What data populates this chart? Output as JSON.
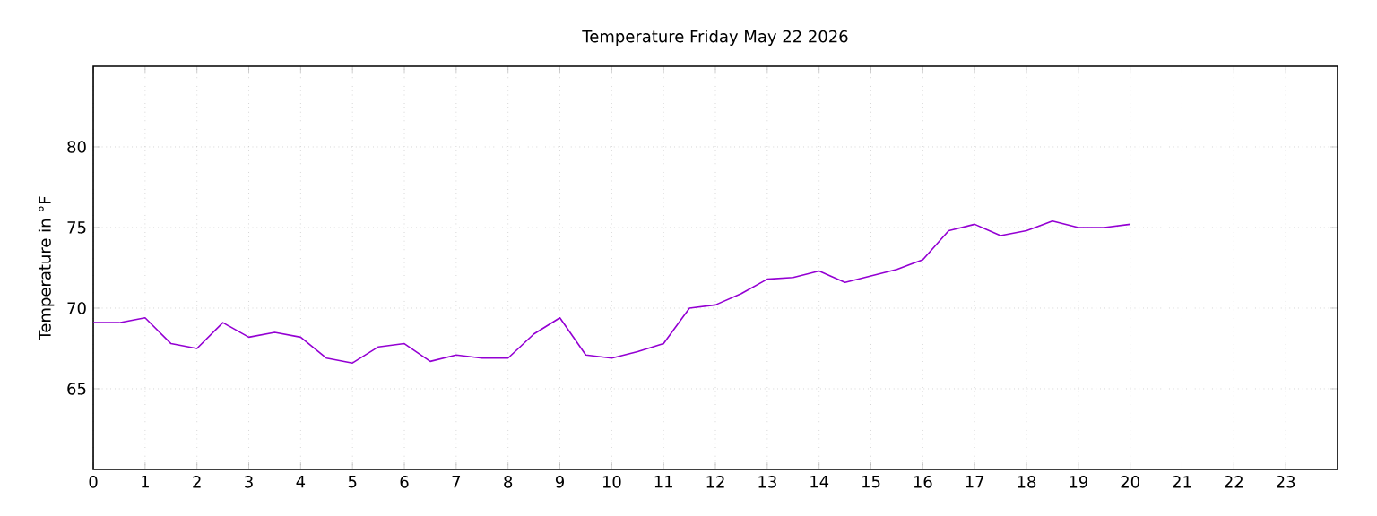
{
  "chart_data": {
    "type": "line",
    "title": "Temperature Friday May 22 2026",
    "ylabel": "Temperature in °F",
    "x": [
      0,
      0.5,
      1,
      1.5,
      2,
      2.5,
      3,
      3.5,
      4,
      4.5,
      5,
      5.5,
      6,
      6.5,
      7,
      7.5,
      8,
      8.5,
      9,
      9.5,
      10,
      10.5,
      11,
      11.5,
      12,
      12.5,
      13,
      13.5,
      14,
      14.5,
      15,
      15.5,
      16,
      16.5,
      17,
      17.5,
      18,
      18.5,
      19,
      19.5,
      20
    ],
    "series": [
      {
        "color": "#9400d3",
        "values": [
          69.1,
          69.1,
          69.4,
          67.8,
          67.5,
          69.1,
          68.2,
          68.5,
          68.2,
          66.9,
          66.6,
          67.6,
          67.8,
          66.7,
          67.1,
          66.9,
          66.9,
          68.4,
          69.4,
          67.1,
          66.9,
          67.3,
          67.8,
          70.0,
          70.2,
          70.9,
          71.8,
          71.9,
          72.3,
          71.6,
          72.0,
          72.4,
          73.0,
          74.8,
          75.2,
          74.5,
          74.8,
          75.4,
          75.0,
          75.0,
          75.2
        ]
      }
    ],
    "xlim": [
      0,
      24
    ],
    "ylim": [
      60,
      85
    ],
    "xticks": [
      0,
      1,
      2,
      3,
      4,
      5,
      6,
      7,
      8,
      9,
      10,
      11,
      12,
      13,
      14,
      15,
      16,
      17,
      18,
      19,
      20,
      21,
      22,
      23
    ],
    "yticks": [
      65,
      70,
      75,
      80
    ],
    "grid": true,
    "marker": "none",
    "line_style": "solid"
  }
}
